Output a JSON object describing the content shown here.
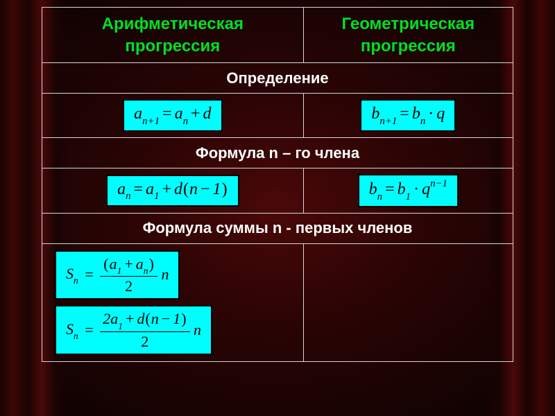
{
  "background": {
    "type": "radial-curtain",
    "center_color": "#4a0808",
    "edge_color": "#0a0202"
  },
  "table": {
    "border_color": "#d8d8d8",
    "headers": {
      "left": "Арифметическая прогрессия",
      "right": "Геометрическая прогрессия",
      "color": "#00e020",
      "fontsize": 24
    },
    "sections": [
      {
        "label": "Определение"
      },
      {
        "label": "Формула n – го члена"
      },
      {
        "label": "Формула суммы n - первых членов"
      }
    ],
    "section_style": {
      "color": "#ffffff",
      "fontsize": 22
    },
    "formula_box": {
      "background": "#00fefe",
      "border_color": "#000000",
      "text_color": "#000000",
      "font": "Times New Roman italic",
      "fontsize": 24
    },
    "formulas": {
      "arith_def": "a_{n+1} = a_n + d",
      "geom_def": "b_{n+1} = b_n · q",
      "arith_nth": "a_n = a_1 + d(n − 1)",
      "geom_nth": "b_n = b_1 · q^{n−1}",
      "arith_sum1": "S_n = ((a_1 + a_n) / 2) · n",
      "arith_sum2": "S_n = (2a_1 + d(n − 1)) / 2 · n",
      "geom_sum": ""
    }
  }
}
